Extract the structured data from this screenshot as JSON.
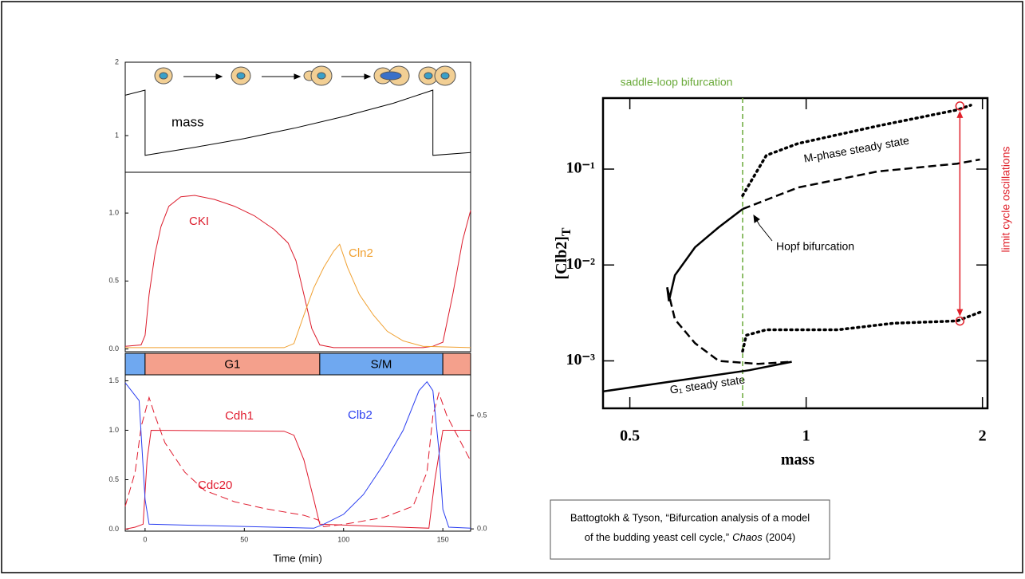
{
  "chart_data": [
    {
      "type": "line",
      "xlim": [
        -10,
        164
      ],
      "ylim": [
        0.5,
        2
      ],
      "yticks": [
        1,
        2
      ],
      "series": [
        {
          "name": "mass",
          "color": "#000000",
          "dash": "solid",
          "x": [
            -10,
            0,
            0,
            25,
            50,
            75,
            100,
            125,
            145,
            145,
            164
          ],
          "values": [
            1.55,
            1.62,
            0.73,
            0.84,
            0.96,
            1.1,
            1.26,
            1.44,
            1.62,
            0.73,
            0.77
          ]
        }
      ]
    },
    {
      "type": "line",
      "xlim": [
        -10,
        164
      ],
      "ylim": [
        -0.02,
        1.3
      ],
      "yticks": [
        {
          "value": 0,
          "label": "0.0"
        },
        {
          "value": 0.5,
          "label": "0.5"
        },
        {
          "value": 1,
          "label": "1.0"
        }
      ],
      "series": [
        {
          "name": "CKI",
          "color": "#dc1c2c",
          "dash": "solid",
          "x": [
            -10,
            -2,
            0,
            2,
            5,
            8,
            12,
            18,
            25,
            35,
            45,
            55,
            65,
            72,
            76,
            80,
            84,
            88,
            95,
            140,
            145,
            150,
            155,
            160,
            164
          ],
          "values": [
            0.02,
            0.03,
            0.1,
            0.4,
            0.7,
            0.9,
            1.05,
            1.12,
            1.13,
            1.1,
            1.05,
            0.98,
            0.88,
            0.78,
            0.65,
            0.4,
            0.15,
            0.03,
            0.01,
            0.01,
            0.02,
            0.05,
            0.4,
            0.8,
            1.02
          ]
        },
        {
          "name": "Cln2",
          "color": "#f0a030",
          "dash": "solid",
          "x": [
            -10,
            70,
            75,
            80,
            85,
            90,
            95,
            98,
            102,
            108,
            115,
            122,
            130,
            140,
            164
          ],
          "values": [
            0.01,
            0.01,
            0.04,
            0.25,
            0.45,
            0.6,
            0.72,
            0.77,
            0.6,
            0.4,
            0.25,
            0.13,
            0.06,
            0.02,
            0.01
          ]
        }
      ]
    },
    {
      "type": "timeline",
      "xlim": [
        -10,
        164
      ],
      "phases": [
        {
          "start": -10,
          "end": 0,
          "color": "#6fa8f0"
        },
        {
          "start": 0,
          "end": 88,
          "label": "G1",
          "color": "#f4a08c"
        },
        {
          "start": 88,
          "end": 150,
          "label": "S/M",
          "color": "#6fa8f0"
        },
        {
          "start": 150,
          "end": 164,
          "color": "#f4a08c"
        }
      ]
    },
    {
      "type": "line",
      "xlim": [
        -10,
        164
      ],
      "ylim": [
        -0.02,
        1.56
      ],
      "y2lim": [
        -0.01,
        0.68
      ],
      "xticks": [
        0,
        50,
        100,
        150
      ],
      "xlabel": "Time (min)",
      "yticks": [
        {
          "value": 0,
          "label": "0.0"
        },
        {
          "value": 0.5,
          "label": "0.5"
        },
        {
          "value": 1,
          "label": "1.0"
        },
        {
          "value": 1.5,
          "label": "1.5"
        }
      ],
      "y2ticks": [
        {
          "value": 0,
          "label": "0.0"
        },
        {
          "value": 0.5,
          "label": "0.5"
        }
      ],
      "series": [
        {
          "name": "Cdh1",
          "color": "#e01b2e",
          "dash": "solid",
          "x": [
            -10,
            -5,
            -1,
            1,
            3,
            70,
            75,
            80,
            85,
            88,
            143,
            146,
            150,
            164
          ],
          "values": [
            0,
            0.02,
            0.05,
            0.7,
            1,
            0.99,
            0.95,
            0.7,
            0.3,
            0.05,
            0.01,
            0.5,
            1,
            1
          ]
        },
        {
          "name": "Cdc20",
          "color": "#e01b2e",
          "dash": "dashed",
          "axis": "y2",
          "x": [
            -10,
            -5,
            -2,
            2,
            5,
            10,
            20,
            30,
            45,
            60,
            80,
            87,
            90,
            100,
            120,
            135,
            142,
            145,
            148,
            152,
            158,
            164
          ],
          "values": [
            0.1,
            0.25,
            0.45,
            0.58,
            0.5,
            0.38,
            0.25,
            0.17,
            0.12,
            0.09,
            0.06,
            0.04,
            0.01,
            0.02,
            0.05,
            0.1,
            0.25,
            0.5,
            0.6,
            0.5,
            0.4,
            0.3
          ]
        },
        {
          "name": "Clb2",
          "color": "#2a3ef0",
          "dash": "solid",
          "x": [
            -10,
            -3,
            0,
            2,
            85,
            90,
            100,
            110,
            120,
            130,
            138,
            142,
            145,
            148,
            150,
            153,
            164
          ],
          "values": [
            1.48,
            1.3,
            0.3,
            0.05,
            0.01,
            0.05,
            0.15,
            0.35,
            0.65,
            1,
            1.4,
            1.49,
            1.4,
            0.8,
            0.2,
            0.02,
            0.01
          ]
        }
      ]
    },
    {
      "type": "line",
      "xscale": "log",
      "yscale": "log",
      "xlim": [
        0.45,
        2.04
      ],
      "ylim": [
        0.00032,
        0.55
      ],
      "xticks": [
        0.5,
        1,
        2
      ],
      "yticks": [
        {
          "value": 0.1,
          "label": "10⁻¹"
        },
        {
          "value": 0.01,
          "label": "10⁻²"
        },
        {
          "value": 0.001,
          "label": "10⁻³"
        }
      ],
      "xlabel": "mass",
      "ylabel": "[Clb2]",
      "ylabel_subscript": "T",
      "series": [
        {
          "color": "#000000",
          "dash": "solid",
          "x": [
            0.45,
            0.6,
            0.8,
            0.945
          ],
          "values": [
            0.00048,
            0.00062,
            0.0008,
            0.00098
          ]
        },
        {
          "color": "#000000",
          "dash": "solid",
          "x": [
            0.579,
            0.583,
            0.597,
            0.646,
            0.709,
            0.779
          ],
          "values": [
            0.00585,
            0.0042,
            0.0078,
            0.0153,
            0.0247,
            0.0383
          ]
        },
        {
          "color": "#000000",
          "dash": "dashed",
          "x": [
            0.779,
            0.969,
            1.325,
            1.81,
            1.98
          ],
          "values": [
            0.0383,
            0.0643,
            0.0944,
            0.114,
            0.126
          ]
        },
        {
          "color": "#000000",
          "dash": "dashed",
          "x": [
            0.579,
            0.597,
            0.646,
            0.709,
            0.829,
            0.945
          ],
          "values": [
            0.00585,
            0.00271,
            0.00153,
            0.001,
            0.00093,
            0.00098
          ]
        },
        {
          "color": "#000000",
          "dash": "dotted",
          "x": [
            0.779,
            0.855,
            0.969,
            1.325,
            1.81,
            1.91
          ],
          "values": [
            0.053,
            0.139,
            0.185,
            0.282,
            0.414,
            0.464
          ]
        },
        {
          "color": "#000000",
          "dash": "dotted",
          "x": [
            0.779,
            0.79,
            0.855,
            1.133,
            1.41,
            1.81,
            2.0
          ],
          "values": [
            0.00126,
            0.00185,
            0.00211,
            0.00211,
            0.00247,
            0.00261,
            0.00329
          ]
        }
      ],
      "vline": {
        "x": 0.779,
        "color": "#6aaa3a"
      },
      "markers": {
        "color": "#e0202a",
        "x": [
          1.83,
          1.83
        ],
        "values": [
          0.455,
          0.0026
        ]
      },
      "annotations": {
        "saddle": "saddle-loop bifurcation",
        "mphase": "M-phase steady state",
        "hopf": "Hopf bifurcation",
        "g1": "G₁ steady state",
        "limit": "limit cycle oscillations"
      }
    }
  ],
  "citation": {
    "line1": "Battogtokh & Tyson, “Bifurcation analysis of a model",
    "line2": "of the budding yeast cell cycle,”",
    "journal": "Chaos",
    "year": "(2004)"
  }
}
